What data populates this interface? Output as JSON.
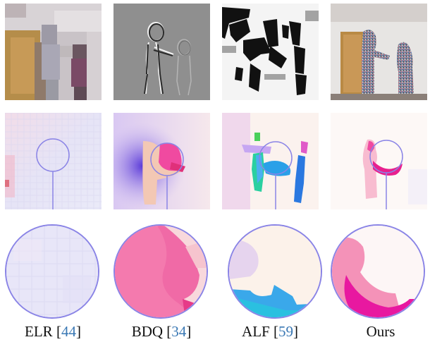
{
  "figure": {
    "methods": [
      {
        "name": "ELR",
        "ref": "44"
      },
      {
        "name": "BDQ",
        "ref": "34"
      },
      {
        "name": "ALF",
        "ref": "59"
      },
      {
        "name": "Ours",
        "ref": ""
      }
    ],
    "colors": {
      "circle_stroke": "#8a84e6",
      "citation": "#3a78b4",
      "flow_pink": "#f04aa0",
      "flow_blue": "#2aa0e8",
      "flow_purple": "#7a6ae0"
    }
  }
}
